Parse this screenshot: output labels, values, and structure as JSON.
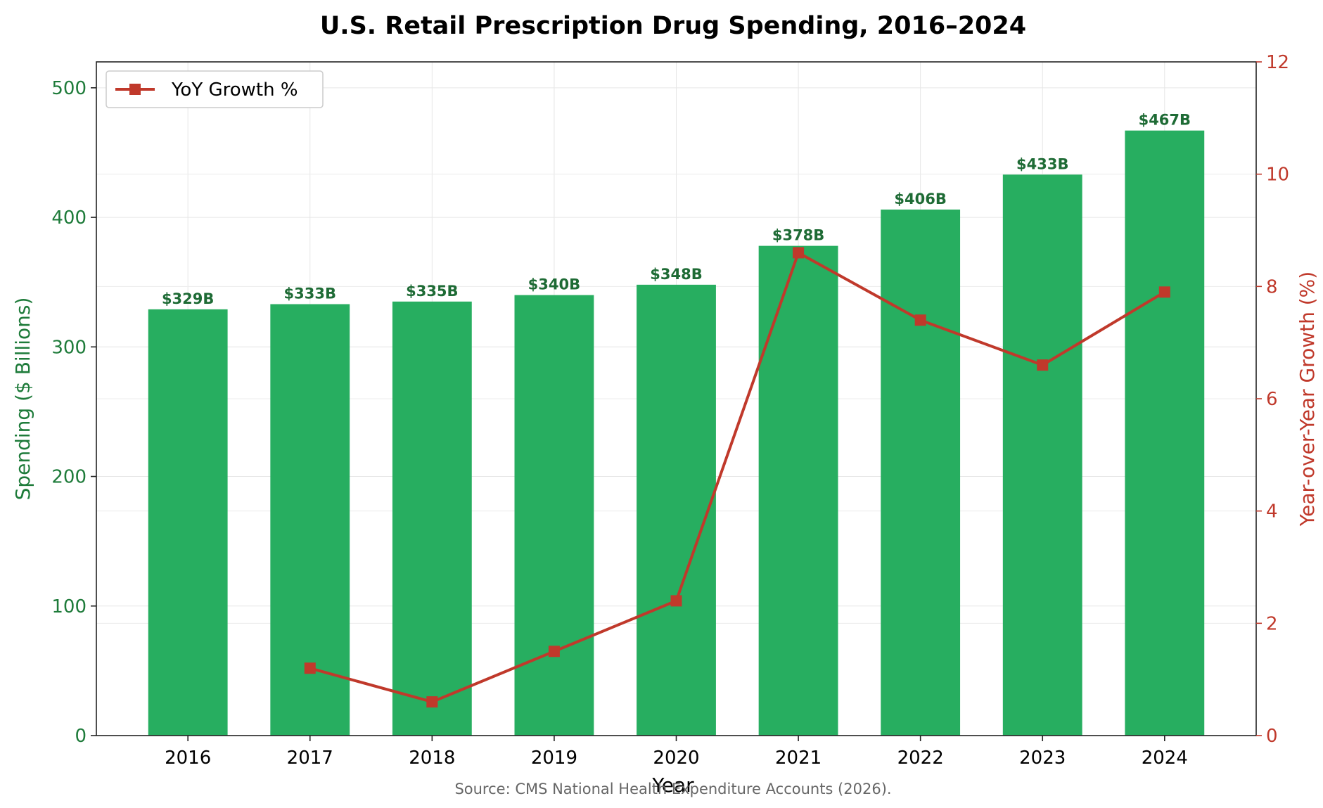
{
  "chart_data": {
    "type": "bar",
    "title": "U.S. Retail Prescription Drug Spending, 2016–2024",
    "xlabel": "Year",
    "ylabel": "Spending ($ Billions)",
    "y2label": "Year-over-Year Growth (%)",
    "categories": [
      "2016",
      "2017",
      "2018",
      "2019",
      "2020",
      "2021",
      "2022",
      "2023",
      "2024"
    ],
    "series": [
      {
        "type": "bar",
        "axis": "left",
        "values": [
          329,
          333,
          335,
          340,
          348,
          378,
          406,
          433,
          467
        ],
        "data_labels": [
          "$329B",
          "$333B",
          "$335B",
          "$340B",
          "$348B",
          "$378B",
          "$406B",
          "$433B",
          "$467B"
        ],
        "color": "#27ae60"
      },
      {
        "type": "line",
        "axis": "right",
        "name": "YoY Growth %",
        "marker": "square",
        "values": [
          null,
          1.2,
          0.6,
          1.5,
          2.4,
          8.6,
          7.4,
          6.6,
          7.9
        ],
        "color": "#c0392b"
      }
    ],
    "ylim": [
      0,
      520
    ],
    "yticks": [
      0,
      100,
      200,
      300,
      400,
      500
    ],
    "y2lim": [
      0,
      12
    ],
    "y2ticks": [
      0,
      2,
      4,
      6,
      8,
      10,
      12
    ],
    "grid": true,
    "legend": "top-left",
    "left_axis_color": "#1e7b3a",
    "right_axis_color": "#c0392b",
    "label_color": "#1e6b35",
    "source": "Source: CMS National Health Expenditure Accounts (2026)."
  }
}
